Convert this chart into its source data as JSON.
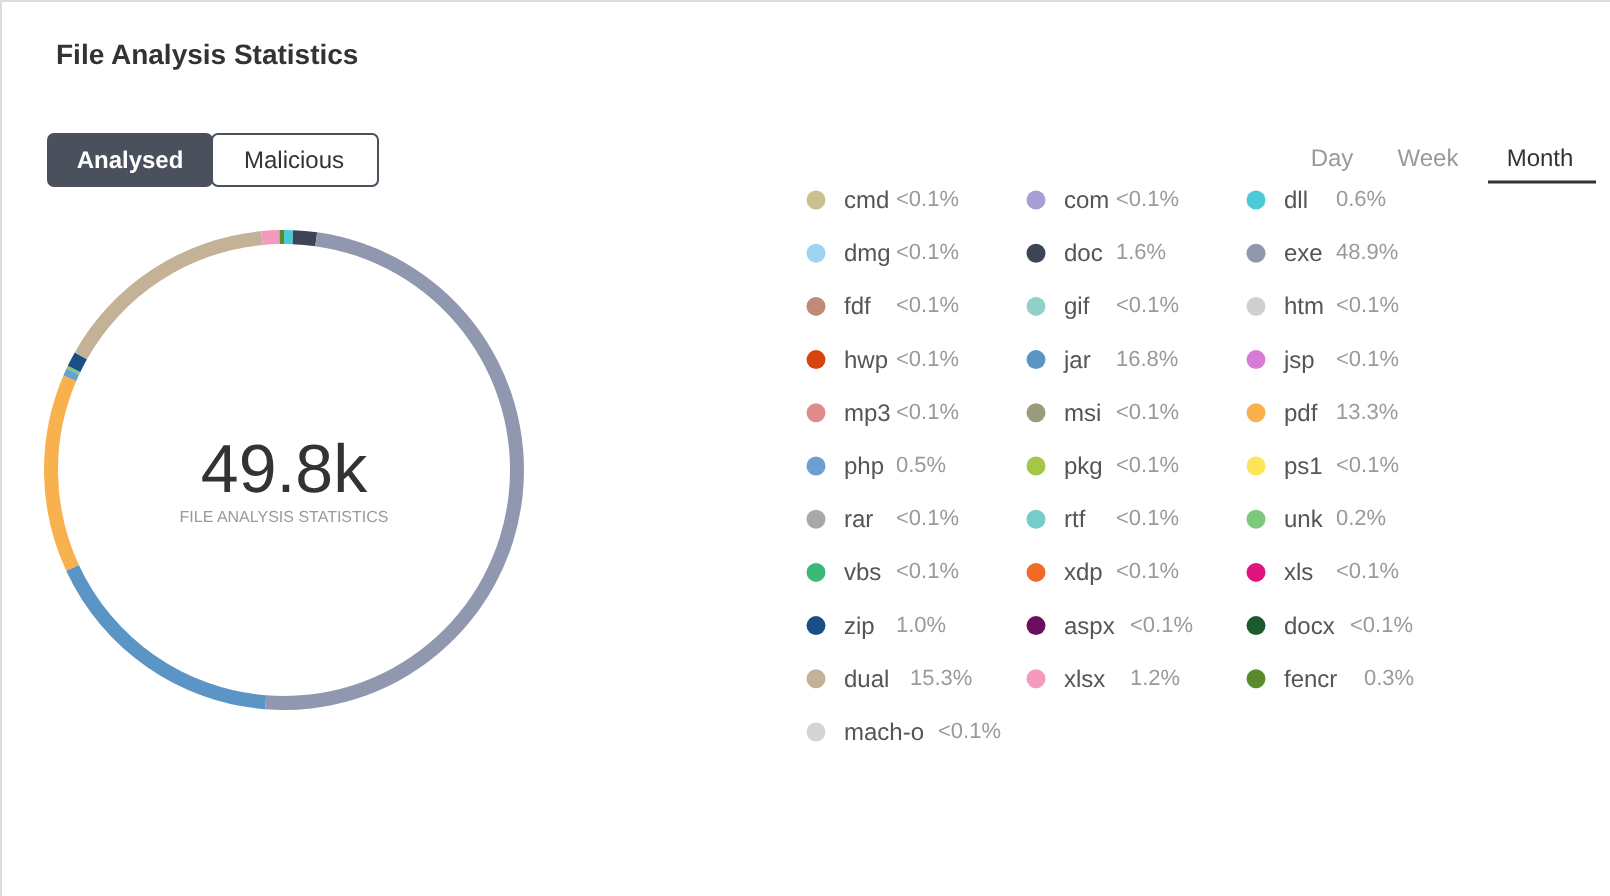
{
  "chart_data": {
    "type": "donut",
    "title": "File Analysis Statistics",
    "categories": [
      "cmd",
      "com",
      "dll",
      "dmg",
      "doc",
      "exe",
      "fdf",
      "gif",
      "htm",
      "hwp",
      "jar",
      "jsp",
      "mp3",
      "msi",
      "pdf",
      "php",
      "pkg",
      "ps1",
      "rar",
      "rtf",
      "unk",
      "vbs",
      "xdp",
      "xls",
      "zip",
      "aspx",
      "docx",
      "dual",
      "xlsx",
      "fencr",
      "mach-o"
    ],
    "values": [
      null,
      null,
      0.6,
      null,
      1.6,
      48.9,
      null,
      null,
      null,
      null,
      16.8,
      null,
      null,
      null,
      13.3,
      0.5,
      null,
      null,
      null,
      null,
      0.2,
      null,
      null,
      null,
      1.0,
      null,
      null,
      15.3,
      1.2,
      0.3,
      null
    ],
    "value_labels": [
      "<0.1%",
      "<0.1%",
      "0.6%",
      "<0.1%",
      "1.6%",
      "48.9%",
      "<0.1%",
      "<0.1%",
      "<0.1%",
      "<0.1%",
      "16.8%",
      "<0.1%",
      "<0.1%",
      "<0.1%",
      "13.3%",
      "0.5%",
      "<0.1%",
      "<0.1%",
      "<0.1%",
      "<0.1%",
      "0.2%",
      "<0.1%",
      "<0.1%",
      "<0.1%",
      "1.0%",
      "<0.1%",
      "<0.1%",
      "15.3%",
      "1.2%",
      "0.3%",
      "<0.1%"
    ],
    "colors": [
      "#c9c08e",
      "#a99fd6",
      "#4ec9d6",
      "#9fd3f2",
      "#3d4456",
      "#9098b0",
      "#c08a78",
      "#8fd1c8",
      "#cfcfcf",
      "#d9430f",
      "#5b95c6",
      "#d77bd6",
      "#e08a8a",
      "#9a9a7c",
      "#f9b14e",
      "#6a9fd0",
      "#a6c64a",
      "#fde55a",
      "#a8a8a8",
      "#74cccc",
      "#7cc97c",
      "#3cb878",
      "#f06a2a",
      "#e0137f",
      "#1a4f85",
      "#6a0f5e",
      "#1c5a2c",
      "#c4b296",
      "#f29bbd",
      "#5a8a2e",
      "#d4d4d4"
    ],
    "legend": "right",
    "annotations": [
      "49.8k",
      "FILE ANALYSIS STATISTICS",
      "Analysed",
      "Malicious",
      "Day",
      "Week",
      "Month"
    ]
  }
}
